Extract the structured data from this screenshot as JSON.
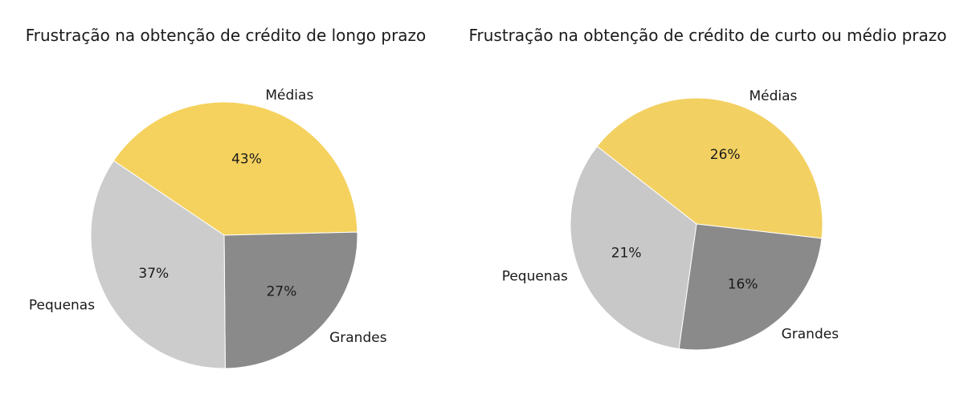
{
  "chart_data": [
    {
      "type": "pie",
      "title": "Frustração na obtenção de crédito de longo prazo",
      "categories": [
        "Médias",
        "Grandes",
        "Pequenas"
      ],
      "values": [
        43,
        27,
        37
      ],
      "value_labels": [
        "43%",
        "27%",
        "37%"
      ],
      "colors": [
        "#F5D25E",
        "#8A8A8A",
        "#CCCCCC"
      ]
    },
    {
      "type": "pie",
      "title": "Frustração na obtenção de crédito de curto ou médio prazo",
      "categories": [
        "Médias",
        "Grandes",
        "Pequenas"
      ],
      "values": [
        26,
        16,
        21
      ],
      "value_labels": [
        "26%",
        "16%",
        "21%"
      ],
      "colors": [
        "#F2D062",
        "#8A8A8A",
        "#C8C8C8"
      ]
    }
  ]
}
